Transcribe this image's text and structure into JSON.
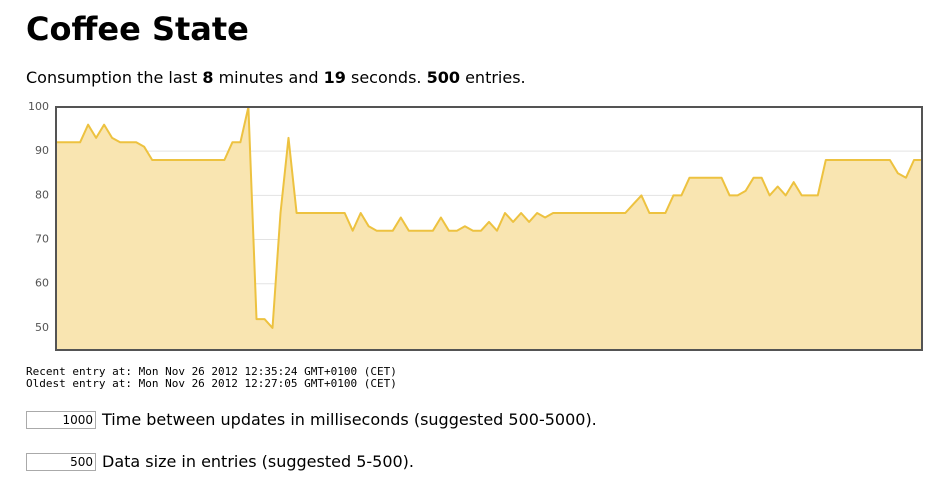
{
  "header": {
    "title": "Coffee State"
  },
  "summary": {
    "prefix": "Consumption the last",
    "minutes": 8,
    "minutes_text": "minutes and",
    "seconds": 19,
    "seconds_text": "seconds.",
    "entries": 500,
    "entries_text": "entries."
  },
  "chart_data": {
    "type": "area",
    "color": "#edc240",
    "fill": "#f9e5b1",
    "grid": true,
    "ylim": [
      45,
      100
    ],
    "yticks": [
      50,
      60,
      70,
      80,
      90,
      100
    ],
    "values": [
      92,
      92,
      92,
      92,
      96,
      93,
      96,
      93,
      92,
      92,
      92,
      91,
      88,
      88,
      88,
      88,
      88,
      88,
      88,
      88,
      88,
      88,
      92,
      92,
      100,
      52,
      52,
      50,
      76,
      93,
      76,
      76,
      76,
      76,
      76,
      76,
      76,
      72,
      76,
      73,
      72,
      72,
      72,
      75,
      72,
      72,
      72,
      72,
      75,
      72,
      72,
      73,
      72,
      72,
      74,
      72,
      76,
      74,
      76,
      74,
      76,
      75,
      76,
      76,
      76,
      76,
      76,
      76,
      76,
      76,
      76,
      76,
      78,
      80,
      76,
      76,
      76,
      80,
      80,
      84,
      84,
      84,
      84,
      84,
      80,
      80,
      81,
      84,
      84,
      80,
      82,
      80,
      83,
      80,
      80,
      80,
      88,
      88,
      88,
      88,
      88,
      88,
      88,
      88,
      88,
      85,
      84,
      88,
      88
    ]
  },
  "times": {
    "recent": "Recent entry at: Mon Nov 26 2012 12:35:24 GMT+0100 (CET)",
    "oldest": "Oldest entry at: Mon Nov 26 2012 12:27:05 GMT+0100 (CET)"
  },
  "controls": [
    {
      "value": "1000",
      "label": "Time between updates in milliseconds (suggested 500-5000)."
    },
    {
      "value": "500",
      "label": "Data size in entries (suggested 5-500)."
    }
  ]
}
